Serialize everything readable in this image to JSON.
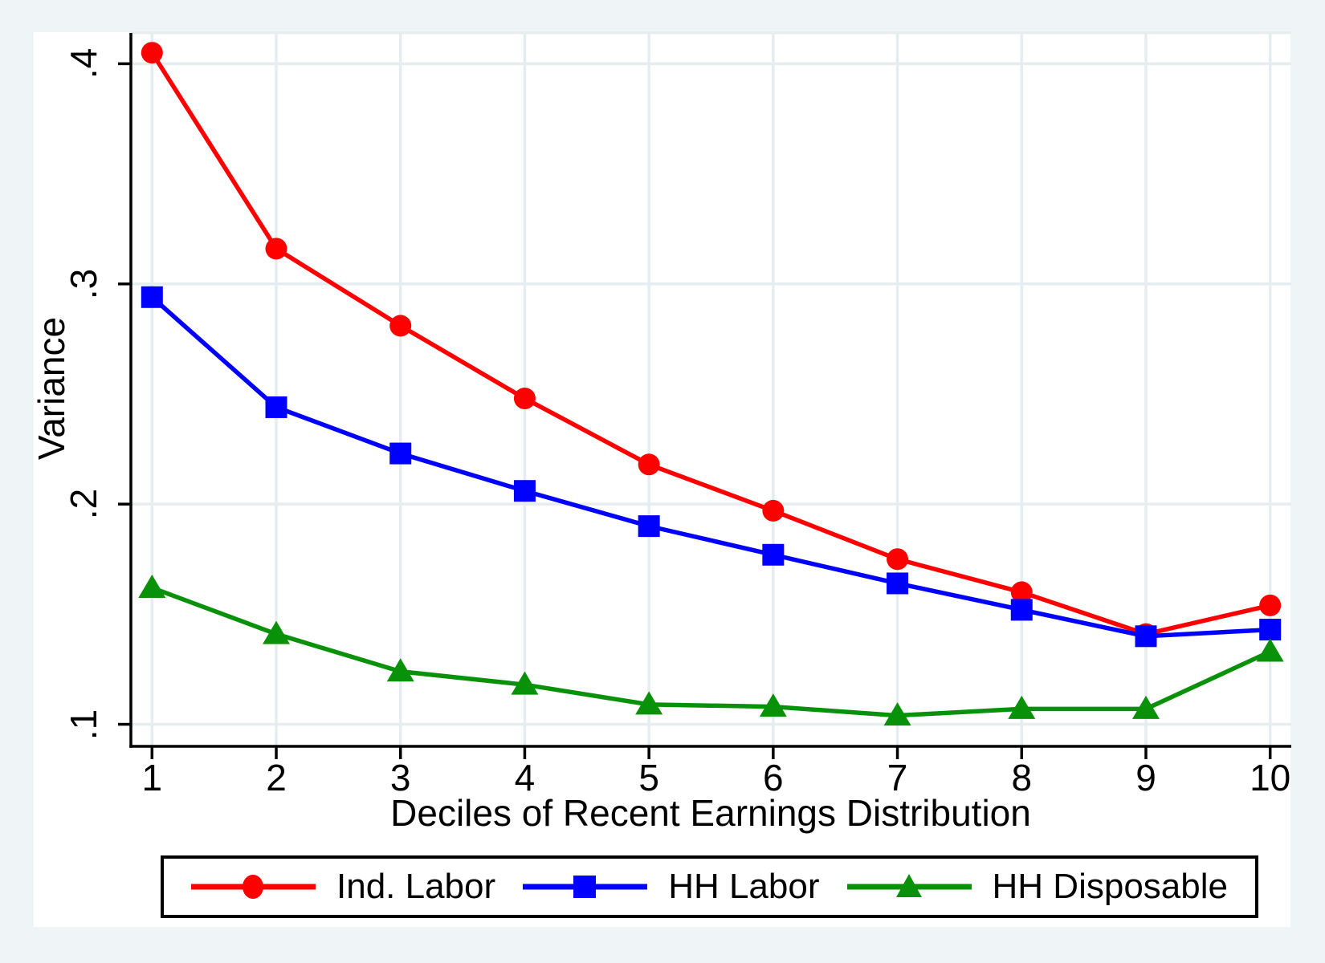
{
  "figure": {
    "background": "#eff4f7",
    "plot_background": "#ffffff",
    "grid_color": "#e6edf1",
    "axis_color": "#000000",
    "legend_border_color": "#000000"
  },
  "chart_data": {
    "type": "line",
    "title": "",
    "xlabel": "Deciles of Recent Earnings Distribution",
    "ylabel": "Variance",
    "x": [
      1,
      2,
      3,
      4,
      5,
      6,
      7,
      8,
      9,
      10
    ],
    "x_tick_labels": [
      "1",
      "2",
      "3",
      "4",
      "5",
      "6",
      "7",
      "8",
      "9",
      "10"
    ],
    "y_ticks": [
      0.1,
      0.2,
      0.3,
      0.4
    ],
    "y_tick_labels": [
      ".1",
      ".2",
      ".3",
      ".4"
    ],
    "xlim": [
      0.83,
      10.17
    ],
    "ylim": [
      0.09,
      0.414
    ],
    "grid": true,
    "legend_position": "bottom",
    "series": [
      {
        "name": "Ind. Labor",
        "color": "#ff0000",
        "marker": "circle",
        "values": [
          0.405,
          0.316,
          0.281,
          0.248,
          0.218,
          0.197,
          0.175,
          0.16,
          0.141,
          0.154
        ]
      },
      {
        "name": "HH Labor",
        "color": "#0000ff",
        "marker": "square",
        "values": [
          0.294,
          0.244,
          0.223,
          0.206,
          0.19,
          0.177,
          0.164,
          0.152,
          0.14,
          0.143
        ]
      },
      {
        "name": "HH Disposable",
        "color": "#0a910a",
        "marker": "triangle",
        "values": [
          0.162,
          0.141,
          0.124,
          0.118,
          0.109,
          0.108,
          0.104,
          0.107,
          0.107,
          0.133
        ]
      }
    ]
  }
}
